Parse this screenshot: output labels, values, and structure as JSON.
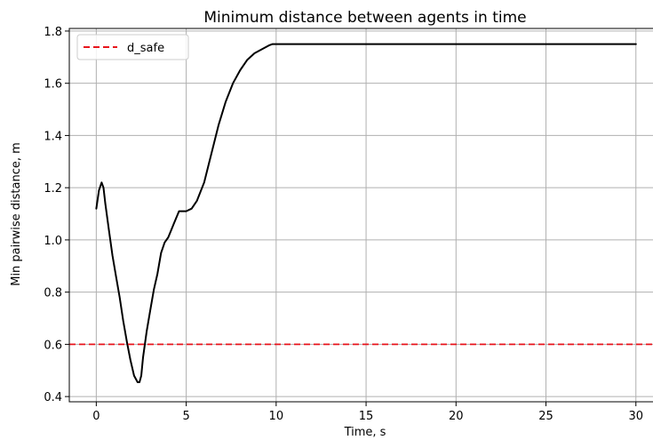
{
  "chart_data": {
    "type": "line",
    "title": "Minimum distance between agents in time",
    "xlabel": "Time, s",
    "ylabel": "Min pairwise distance, m",
    "xlim": [
      -1.5,
      31
    ],
    "ylim": [
      0.38,
      1.81
    ],
    "xticks": [
      0,
      5,
      10,
      15,
      20,
      25,
      30
    ],
    "yticks": [
      0.4,
      0.6,
      0.8,
      1.0,
      1.2,
      1.4,
      1.6,
      1.8
    ],
    "grid": true,
    "legend": {
      "position": "upper-left",
      "entries": [
        {
          "name": "d_safe",
          "color": "#e8141c",
          "style": "dashed"
        }
      ]
    },
    "series": [
      {
        "style": "solid",
        "color": "#000000",
        "x": [
          0,
          0.15,
          0.3,
          0.4,
          0.5,
          0.7,
          0.9,
          1.1,
          1.3,
          1.5,
          1.7,
          1.9,
          2.1,
          2.3,
          2.4,
          2.5,
          2.6,
          2.8,
          3.0,
          3.2,
          3.4,
          3.6,
          3.8,
          4.0,
          4.3,
          4.6,
          4.8,
          5.0,
          5.3,
          5.6,
          6.0,
          6.4,
          6.8,
          7.2,
          7.6,
          8.0,
          8.4,
          8.8,
          9.2,
          9.6,
          9.8,
          10.0,
          12.0,
          15.0,
          20.0,
          25.0,
          30.0
        ],
        "y": [
          1.12,
          1.19,
          1.22,
          1.2,
          1.14,
          1.04,
          0.94,
          0.86,
          0.78,
          0.69,
          0.61,
          0.54,
          0.48,
          0.455,
          0.455,
          0.48,
          0.55,
          0.65,
          0.73,
          0.81,
          0.87,
          0.95,
          0.99,
          1.01,
          1.06,
          1.11,
          1.11,
          1.11,
          1.12,
          1.15,
          1.22,
          1.33,
          1.44,
          1.53,
          1.6,
          1.65,
          1.69,
          1.715,
          1.73,
          1.745,
          1.75,
          1.75,
          1.75,
          1.75,
          1.75,
          1.75,
          1.75
        ]
      },
      {
        "name": "d_safe",
        "style": "dashed",
        "color": "#e8141c",
        "x": [
          -1.5,
          31
        ],
        "y": [
          0.6,
          0.6
        ]
      }
    ]
  }
}
